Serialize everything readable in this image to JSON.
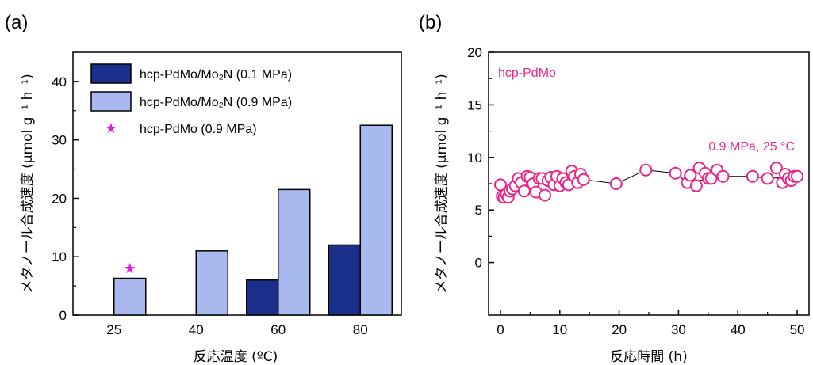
{
  "chart_data": [
    {
      "type": "bar",
      "panel_label": "(a)",
      "xlabel": "反応温度 (ºC)",
      "ylabel": "メタノール合成速度 (μmol g⁻¹ h⁻¹)",
      "ylim": [
        0,
        45
      ],
      "yticks": [
        0,
        10,
        20,
        30,
        40
      ],
      "categories": [
        "25",
        "40",
        "60",
        "80"
      ],
      "series": [
        {
          "name": "hcp-PdMo/Mo₂N (0.1 MPa)",
          "color": "#1a2f8a",
          "values": [
            null,
            null,
            6,
            12
          ]
        },
        {
          "name": "hcp-PdMo/Mo₂N (0.9 MPa)",
          "color": "#a9b9f0",
          "values": [
            6.3,
            11,
            21.5,
            32.5
          ]
        },
        {
          "name": "hcp-PdMo (0.9 MPa)",
          "color": "#e61adb",
          "marker": "star",
          "values": [
            8,
            null,
            null,
            null
          ]
        }
      ],
      "legend_position": "top-left"
    },
    {
      "type": "scatter",
      "panel_label": "(b)",
      "xlabel": "反応時間 (h)",
      "ylabel": "メタノール合成速度 (μmol g⁻¹ h⁻¹)",
      "xlim": [
        -2,
        52
      ],
      "ylim": [
        -5,
        20
      ],
      "xticks": [
        0,
        10,
        20,
        30,
        40,
        50
      ],
      "yticks": [
        0,
        5,
        10,
        15,
        20
      ],
      "color": "#e8268c",
      "annotations": [
        "hcp-PdMo",
        "0.9 MPa, 25 °C"
      ],
      "points": [
        [
          0,
          7.4
        ],
        [
          0.3,
          6.3
        ],
        [
          0.6,
          6.2
        ],
        [
          1,
          6.5
        ],
        [
          1.3,
          6.2
        ],
        [
          1.6,
          6.8
        ],
        [
          2,
          7.0
        ],
        [
          2.5,
          7.3
        ],
        [
          3,
          8.0
        ],
        [
          3.5,
          7.6
        ],
        [
          4,
          6.8
        ],
        [
          4.5,
          8.2
        ],
        [
          5,
          8.1
        ],
        [
          5.5,
          7.5
        ],
        [
          6,
          6.7
        ],
        [
          6.5,
          8.0
        ],
        [
          7,
          8.0
        ],
        [
          7.5,
          6.4
        ],
        [
          8,
          7.8
        ],
        [
          8.5,
          8.1
        ],
        [
          9,
          7.4
        ],
        [
          9.5,
          8.2
        ],
        [
          10,
          7.3
        ],
        [
          10.5,
          8.0
        ],
        [
          11,
          7.6
        ],
        [
          11.5,
          7.4
        ],
        [
          12,
          8.7
        ],
        [
          12.5,
          8.2
        ],
        [
          13,
          7.6
        ],
        [
          13.5,
          8.4
        ],
        [
          14,
          7.9
        ],
        [
          19.5,
          7.5
        ],
        [
          24.5,
          8.8
        ],
        [
          29.5,
          8.5
        ],
        [
          31.5,
          7.6
        ],
        [
          32,
          8.3
        ],
        [
          33,
          7.3
        ],
        [
          33.5,
          9.0
        ],
        [
          34.5,
          8.5
        ],
        [
          35,
          8.0
        ],
        [
          35.5,
          8.0
        ],
        [
          36.5,
          8.8
        ],
        [
          37.5,
          8.2
        ],
        [
          42.5,
          8.2
        ],
        [
          45,
          8.0
        ],
        [
          46.5,
          9.0
        ],
        [
          47.5,
          7.6
        ],
        [
          48,
          8.4
        ],
        [
          48.5,
          8.0
        ],
        [
          49,
          7.8
        ],
        [
          49.5,
          8.2
        ],
        [
          50,
          8.2
        ]
      ],
      "line": [
        [
          14,
          7.9
        ],
        [
          19.5,
          7.5
        ],
        [
          24.5,
          8.8
        ],
        [
          29.5,
          8.5
        ],
        [
          31.5,
          7.6
        ],
        [
          37.5,
          8.2
        ],
        [
          42.5,
          8.2
        ],
        [
          45,
          8.0
        ],
        [
          50,
          8.2
        ]
      ]
    }
  ]
}
